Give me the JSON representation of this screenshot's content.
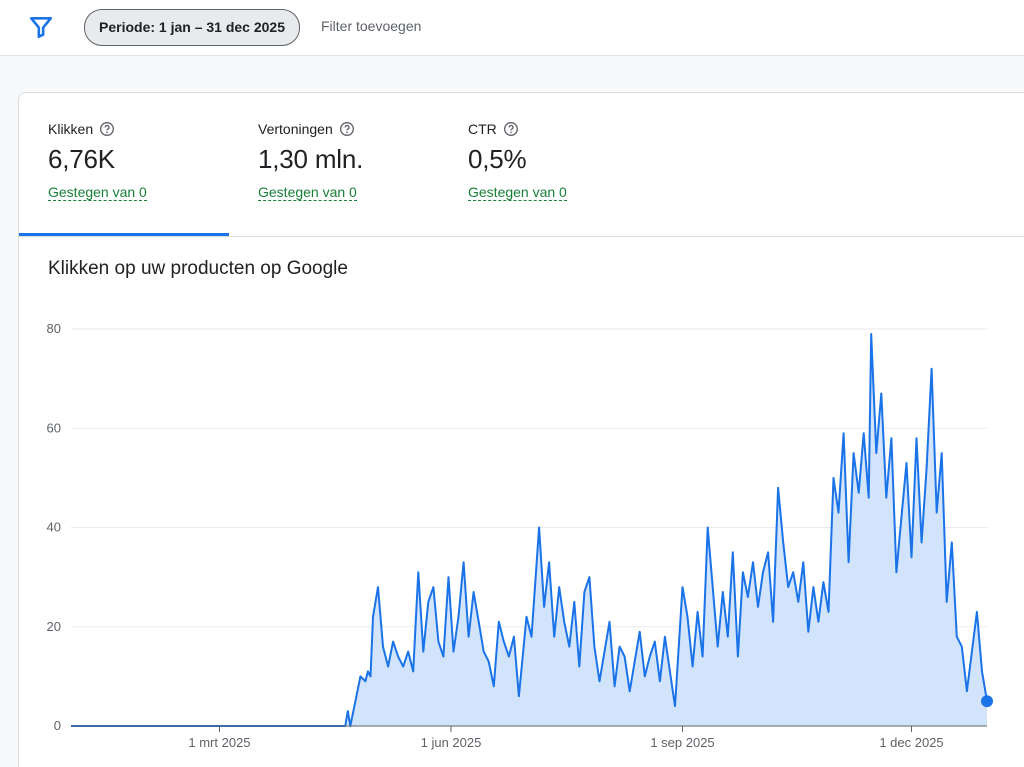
{
  "toolbar": {
    "period_chip": "Periode: 1 jan – 31 dec 2025",
    "add_filter": "Filter toevoegen",
    "filter_icon": "filter-icon"
  },
  "metrics": [
    {
      "label": "Klikken",
      "value": "6,76K",
      "change": "Gestegen van 0",
      "active": true
    },
    {
      "label": "Vertoningen",
      "value": "1,30 mln.",
      "change": "Gestegen van 0",
      "active": false
    },
    {
      "label": "CTR",
      "value": "0,5%",
      "change": "Gestegen van 0",
      "active": false
    }
  ],
  "colors": {
    "accent": "#1a73e8",
    "area": "#d2e3fc",
    "positive": "#188038",
    "grid": "#e8eaed"
  },
  "chart_data": {
    "type": "area",
    "title": "Klikken op uw producten op Google",
    "x_start": "2025-01-01",
    "x_end": "2025-12-31",
    "ylim": [
      0,
      80
    ],
    "y_ticks": [
      0,
      20,
      40,
      60,
      80
    ],
    "x_ticks": [
      {
        "date": "2025-03-01",
        "label": "1 mrt 2025"
      },
      {
        "date": "2025-06-01",
        "label": "1 jun 2025"
      },
      {
        "date": "2025-09-01",
        "label": "1 sep 2025"
      },
      {
        "date": "2025-12-01",
        "label": "1 dec 2025"
      }
    ],
    "grid": true,
    "series": [
      {
        "points": [
          [
            "2025-01-01",
            0
          ],
          [
            "2025-04-20",
            0
          ],
          [
            "2025-04-21",
            3
          ],
          [
            "2025-04-22",
            0
          ],
          [
            "2025-04-24",
            5
          ],
          [
            "2025-04-26",
            10
          ],
          [
            "2025-04-28",
            9
          ],
          [
            "2025-04-29",
            11
          ],
          [
            "2025-04-30",
            10
          ],
          [
            "2025-05-01",
            22
          ],
          [
            "2025-05-03",
            28
          ],
          [
            "2025-05-05",
            16
          ],
          [
            "2025-05-07",
            12
          ],
          [
            "2025-05-09",
            17
          ],
          [
            "2025-05-11",
            14
          ],
          [
            "2025-05-13",
            12
          ],
          [
            "2025-05-15",
            15
          ],
          [
            "2025-05-17",
            11
          ],
          [
            "2025-05-19",
            31
          ],
          [
            "2025-05-21",
            15
          ],
          [
            "2025-05-23",
            25
          ],
          [
            "2025-05-25",
            28
          ],
          [
            "2025-05-27",
            17
          ],
          [
            "2025-05-29",
            14
          ],
          [
            "2025-05-31",
            30
          ],
          [
            "2025-06-02",
            15
          ],
          [
            "2025-06-04",
            22
          ],
          [
            "2025-06-06",
            33
          ],
          [
            "2025-06-08",
            18
          ],
          [
            "2025-06-10",
            27
          ],
          [
            "2025-06-12",
            21
          ],
          [
            "2025-06-14",
            15
          ],
          [
            "2025-06-16",
            13
          ],
          [
            "2025-06-18",
            8
          ],
          [
            "2025-06-20",
            21
          ],
          [
            "2025-06-22",
            17
          ],
          [
            "2025-06-24",
            14
          ],
          [
            "2025-06-26",
            18
          ],
          [
            "2025-06-28",
            6
          ],
          [
            "2025-07-01",
            22
          ],
          [
            "2025-07-03",
            18
          ],
          [
            "2025-07-06",
            40
          ],
          [
            "2025-07-08",
            24
          ],
          [
            "2025-07-10",
            33
          ],
          [
            "2025-07-12",
            18
          ],
          [
            "2025-07-14",
            28
          ],
          [
            "2025-07-16",
            21
          ],
          [
            "2025-07-18",
            16
          ],
          [
            "2025-07-20",
            25
          ],
          [
            "2025-07-22",
            12
          ],
          [
            "2025-07-24",
            27
          ],
          [
            "2025-07-26",
            30
          ],
          [
            "2025-07-28",
            16
          ],
          [
            "2025-07-30",
            9
          ],
          [
            "2025-08-01",
            15
          ],
          [
            "2025-08-03",
            21
          ],
          [
            "2025-08-05",
            8
          ],
          [
            "2025-08-07",
            16
          ],
          [
            "2025-08-09",
            14
          ],
          [
            "2025-08-11",
            7
          ],
          [
            "2025-08-13",
            13
          ],
          [
            "2025-08-15",
            19
          ],
          [
            "2025-08-17",
            10
          ],
          [
            "2025-08-19",
            14
          ],
          [
            "2025-08-21",
            17
          ],
          [
            "2025-08-23",
            9
          ],
          [
            "2025-08-25",
            18
          ],
          [
            "2025-08-27",
            11
          ],
          [
            "2025-08-29",
            4
          ],
          [
            "2025-09-01",
            28
          ],
          [
            "2025-09-03",
            22
          ],
          [
            "2025-09-05",
            12
          ],
          [
            "2025-09-07",
            23
          ],
          [
            "2025-09-09",
            14
          ],
          [
            "2025-09-11",
            40
          ],
          [
            "2025-09-13",
            28
          ],
          [
            "2025-09-15",
            16
          ],
          [
            "2025-09-17",
            27
          ],
          [
            "2025-09-19",
            18
          ],
          [
            "2025-09-21",
            35
          ],
          [
            "2025-09-23",
            14
          ],
          [
            "2025-09-25",
            31
          ],
          [
            "2025-09-27",
            26
          ],
          [
            "2025-09-29",
            33
          ],
          [
            "2025-10-01",
            24
          ],
          [
            "2025-10-03",
            31
          ],
          [
            "2025-10-05",
            35
          ],
          [
            "2025-10-07",
            21
          ],
          [
            "2025-10-09",
            48
          ],
          [
            "2025-10-11",
            37
          ],
          [
            "2025-10-13",
            28
          ],
          [
            "2025-10-15",
            31
          ],
          [
            "2025-10-17",
            25
          ],
          [
            "2025-10-19",
            33
          ],
          [
            "2025-10-21",
            19
          ],
          [
            "2025-10-23",
            28
          ],
          [
            "2025-10-25",
            21
          ],
          [
            "2025-10-27",
            29
          ],
          [
            "2025-10-29",
            23
          ],
          [
            "2025-10-31",
            50
          ],
          [
            "2025-11-02",
            43
          ],
          [
            "2025-11-04",
            59
          ],
          [
            "2025-11-06",
            33
          ],
          [
            "2025-11-08",
            55
          ],
          [
            "2025-11-10",
            47
          ],
          [
            "2025-11-12",
            59
          ],
          [
            "2025-11-14",
            46
          ],
          [
            "2025-11-15",
            79
          ],
          [
            "2025-11-17",
            55
          ],
          [
            "2025-11-19",
            67
          ],
          [
            "2025-11-21",
            46
          ],
          [
            "2025-11-23",
            58
          ],
          [
            "2025-11-25",
            31
          ],
          [
            "2025-11-27",
            42
          ],
          [
            "2025-11-29",
            53
          ],
          [
            "2025-12-01",
            34
          ],
          [
            "2025-12-03",
            58
          ],
          [
            "2025-12-05",
            37
          ],
          [
            "2025-12-07",
            52
          ],
          [
            "2025-12-09",
            72
          ],
          [
            "2025-12-11",
            43
          ],
          [
            "2025-12-13",
            55
          ],
          [
            "2025-12-15",
            25
          ],
          [
            "2025-12-17",
            37
          ],
          [
            "2025-12-19",
            18
          ],
          [
            "2025-12-21",
            16
          ],
          [
            "2025-12-23",
            7
          ],
          [
            "2025-12-25",
            15
          ],
          [
            "2025-12-27",
            23
          ],
          [
            "2025-12-29",
            11
          ],
          [
            "2025-12-31",
            5
          ]
        ],
        "end_marker": true
      }
    ]
  }
}
